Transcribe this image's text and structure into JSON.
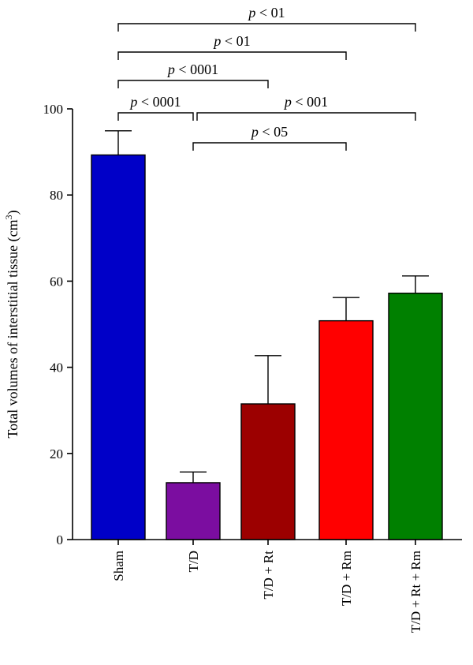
{
  "chart_data": {
    "type": "bar",
    "title": "",
    "xlabel": "",
    "ylabel": "Total volumes of interstitial tissue (cm",
    "ylabel_superscript": "3",
    "ylabel_suffix": ")",
    "ylim": [
      0,
      100
    ],
    "yticks": [
      0,
      20,
      40,
      60,
      80,
      100
    ],
    "grid": false,
    "legend": "none",
    "categories": [
      "Sham",
      "T/D",
      "T/D + Rt",
      "T/D + Rm",
      "T/D + Rt + Rm"
    ],
    "values": [
      89.3,
      13.2,
      31.5,
      50.8,
      57.2
    ],
    "errors": [
      5.6,
      2.5,
      11.2,
      5.4,
      4.0
    ],
    "colors": [
      "#0000c8",
      "#7b0da0",
      "#9c0000",
      "#ff0000",
      "#008000"
    ],
    "significance": [
      {
        "from": 0,
        "to": 4,
        "p": "< 01"
      },
      {
        "from": 0,
        "to": 3,
        "p": "< 01"
      },
      {
        "from": 0,
        "to": 2,
        "p": "< 0001"
      },
      {
        "from": 0,
        "to": 1,
        "p": "< 0001"
      },
      {
        "from": 1,
        "to": 4,
        "p": "< 001"
      },
      {
        "from": 1,
        "to": 3,
        "p": "< 05"
      }
    ]
  }
}
